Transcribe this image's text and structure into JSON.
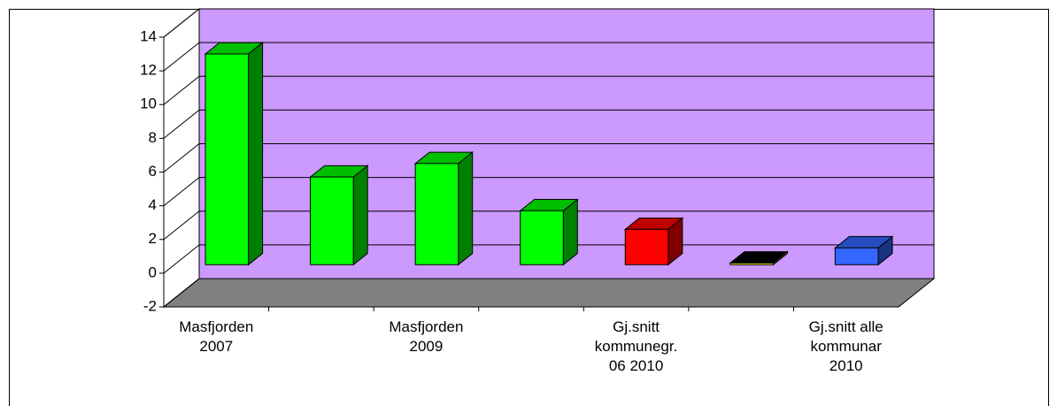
{
  "chart_data": {
    "type": "bar3d",
    "categories": [
      "Masfjorden 2007",
      null,
      "Masfjorden 2009",
      null,
      "Gj.snitt kommunegr. 06 2010",
      null,
      "Gj.snitt alle kommunar 2010"
    ],
    "values": [
      12.5,
      5.2,
      6.0,
      3.2,
      2.1,
      0.1,
      1.0
    ],
    "colors": [
      "#00ff00",
      "#00ff00",
      "#00ff00",
      "#00ff00",
      "#ff0000",
      "#ffff00",
      "#3366ff"
    ],
    "ylim": [
      -2,
      14
    ],
    "yticks": [
      -2,
      0,
      2,
      4,
      6,
      8,
      10,
      12,
      14
    ],
    "grid": true,
    "wall_color": "#cc99ff",
    "floor_color": "#808080"
  }
}
